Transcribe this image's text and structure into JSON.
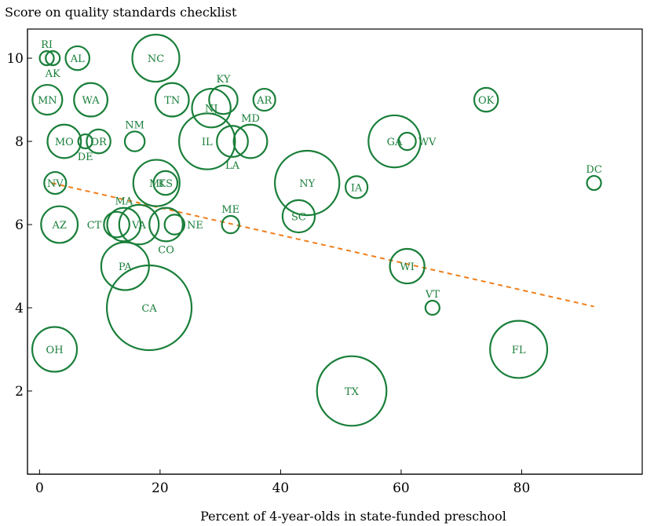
{
  "chart_data": {
    "type": "scatter",
    "title": "Score on quality standards checklist",
    "xlabel": "Percent of 4-year-olds in state-funded preschool",
    "ylabel": "Score on quality standards checklist",
    "xlim": [
      -2,
      100
    ],
    "ylim": [
      0,
      10.7
    ],
    "xticks": [
      0,
      20,
      40,
      60,
      80
    ],
    "yticks": [
      2,
      4,
      6,
      8,
      10
    ],
    "grid": false,
    "legend": "none",
    "colors": {
      "bubble": "#1a7f3a",
      "trend": "#f07f1c"
    },
    "trend_line": {
      "x": [
        2,
        92
      ],
      "y": [
        7.0,
        4.03
      ]
    },
    "points": [
      {
        "state": "RI",
        "x": 1.2,
        "y": 10,
        "size": 1,
        "label_pos": "above"
      },
      {
        "state": "AK",
        "x": 2.2,
        "y": 10,
        "size": 1,
        "label_pos": "below"
      },
      {
        "state": "AL",
        "x": 6.3,
        "y": 10,
        "size": 5,
        "label_pos": "center"
      },
      {
        "state": "NC",
        "x": 19.3,
        "y": 10,
        "size": 27,
        "label_pos": "center"
      },
      {
        "state": "MN",
        "x": 1.3,
        "y": 9,
        "size": 9,
        "label_pos": "center"
      },
      {
        "state": "WA",
        "x": 8.5,
        "y": 9,
        "size": 12,
        "label_pos": "center"
      },
      {
        "state": "TN",
        "x": 22.0,
        "y": 9,
        "size": 12,
        "label_pos": "center"
      },
      {
        "state": "KY",
        "x": 30.5,
        "y": 9,
        "size": 8,
        "label_pos": "above"
      },
      {
        "state": "AR",
        "x": 37.3,
        "y": 9,
        "size": 4,
        "label_pos": "center"
      },
      {
        "state": "OK",
        "x": 74.1,
        "y": 9,
        "size": 5,
        "label_pos": "center"
      },
      {
        "state": "NJ",
        "x": 28.5,
        "y": 8.8,
        "size": 17,
        "label_pos": "center"
      },
      {
        "state": "MO",
        "x": 4.1,
        "y": 8,
        "size": 12,
        "label_pos": "center"
      },
      {
        "state": "DE",
        "x": 7.6,
        "y": 8,
        "size": 1,
        "label_pos": "below"
      },
      {
        "state": "OR",
        "x": 9.8,
        "y": 8,
        "size": 5,
        "label_pos": "center"
      },
      {
        "state": "NM",
        "x": 15.8,
        "y": 8,
        "size": 3,
        "label_pos": "above"
      },
      {
        "state": "IL",
        "x": 27.8,
        "y": 8,
        "size": 40,
        "label_pos": "center"
      },
      {
        "state": "MD",
        "x": 35.0,
        "y": 8,
        "size": 12,
        "label_pos": "above"
      },
      {
        "state": "LA",
        "x": 32.0,
        "y": 8,
        "size": 10,
        "label_pos": "below"
      },
      {
        "state": "GA",
        "x": 58.9,
        "y": 8,
        "size": 34,
        "label_pos": "center"
      },
      {
        "state": "WV",
        "x": 61.0,
        "y": 8,
        "size": 2,
        "label_pos": "right"
      },
      {
        "state": "DC",
        "x": 92.0,
        "y": 7,
        "size": 1,
        "label_pos": "above"
      },
      {
        "state": "NV",
        "x": 2.6,
        "y": 7,
        "size": 4,
        "label_pos": "center"
      },
      {
        "state": "MI",
        "x": 19.4,
        "y": 7,
        "size": 26,
        "label_pos": "center"
      },
      {
        "state": "KS",
        "x": 20.9,
        "y": 7,
        "size": 5,
        "label_pos": "center"
      },
      {
        "state": "NY",
        "x": 44.4,
        "y": 7,
        "size": 55,
        "label_pos": "center"
      },
      {
        "state": "IA",
        "x": 52.6,
        "y": 6.9,
        "size": 4,
        "label_pos": "center"
      },
      {
        "state": "AZ",
        "x": 3.3,
        "y": 6,
        "size": 15,
        "label_pos": "center"
      },
      {
        "state": "CT",
        "x": 12.8,
        "y": 6,
        "size": 6,
        "label_pos": "left"
      },
      {
        "state": "MA",
        "x": 14.0,
        "y": 6,
        "size": 12,
        "label_pos": "above"
      },
      {
        "state": "VA",
        "x": 16.5,
        "y": 6,
        "size": 18,
        "label_pos": "center"
      },
      {
        "state": "NE",
        "x": 22.4,
        "y": 6,
        "size": 3,
        "label_pos": "right"
      },
      {
        "state": "CO",
        "x": 21.0,
        "y": 6,
        "size": 12,
        "label_pos": "below"
      },
      {
        "state": "ME",
        "x": 31.7,
        "y": 6,
        "size": 2,
        "label_pos": "above"
      },
      {
        "state": "SC",
        "x": 43.0,
        "y": 6.2,
        "size": 11,
        "label_pos": "center"
      },
      {
        "state": "WI",
        "x": 61.0,
        "y": 5,
        "size": 13,
        "label_pos": "center"
      },
      {
        "state": "PA",
        "x": 14.2,
        "y": 5,
        "size": 28,
        "label_pos": "center"
      },
      {
        "state": "VT",
        "x": 65.2,
        "y": 4,
        "size": 1,
        "label_pos": "above"
      },
      {
        "state": "CA",
        "x": 18.2,
        "y": 4,
        "size": 100,
        "label_pos": "center"
      },
      {
        "state": "OH",
        "x": 2.5,
        "y": 3,
        "size": 24,
        "label_pos": "center"
      },
      {
        "state": "FL",
        "x": 79.5,
        "y": 3,
        "size": 42,
        "label_pos": "center"
      },
      {
        "state": "TX",
        "x": 51.8,
        "y": 2,
        "size": 65,
        "label_pos": "center"
      }
    ]
  }
}
